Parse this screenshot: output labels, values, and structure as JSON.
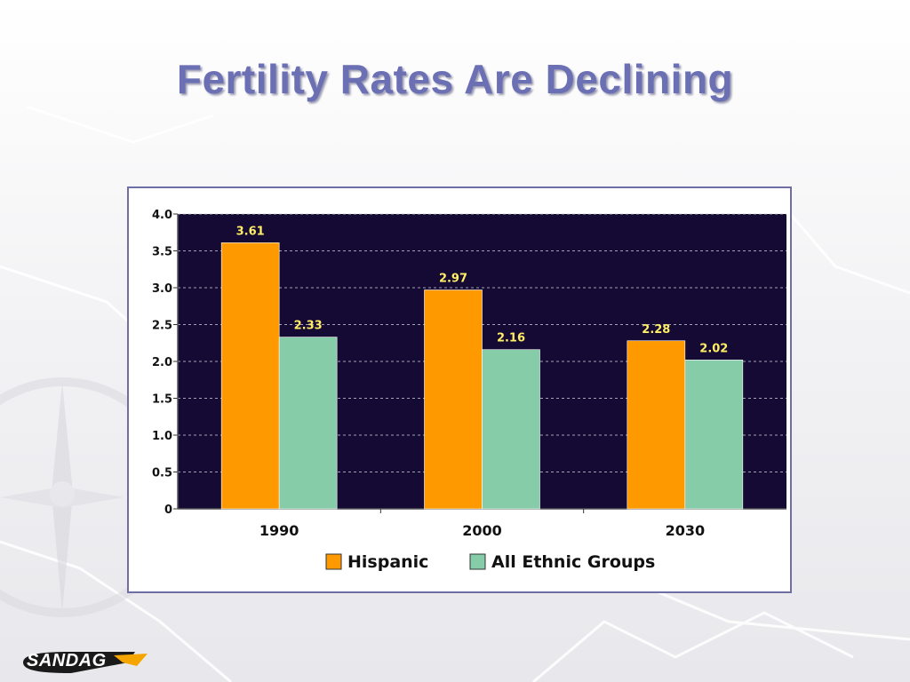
{
  "slide": {
    "title": "Fertility Rates Are Declining",
    "logo_text": "SANDAG"
  },
  "chart_data": {
    "type": "bar",
    "title": "",
    "xlabel": "",
    "ylabel": "",
    "categories": [
      "1990",
      "2000",
      "2030"
    ],
    "series": [
      {
        "name": "Hispanic",
        "values": [
          3.61,
          2.97,
          2.28
        ],
        "color": "#ff9900"
      },
      {
        "name": "All Ethnic Groups",
        "values": [
          2.33,
          2.16,
          2.02
        ],
        "color": "#86cca9"
      }
    ],
    "ylim": [
      0,
      4.0
    ],
    "yticks": [
      "0",
      "0.5",
      "1.0",
      "1.5",
      "2.0",
      "2.5",
      "3.0",
      "3.5",
      "4.0"
    ],
    "grid": true,
    "plot_background": "#140a33",
    "legend_position": "bottom"
  }
}
